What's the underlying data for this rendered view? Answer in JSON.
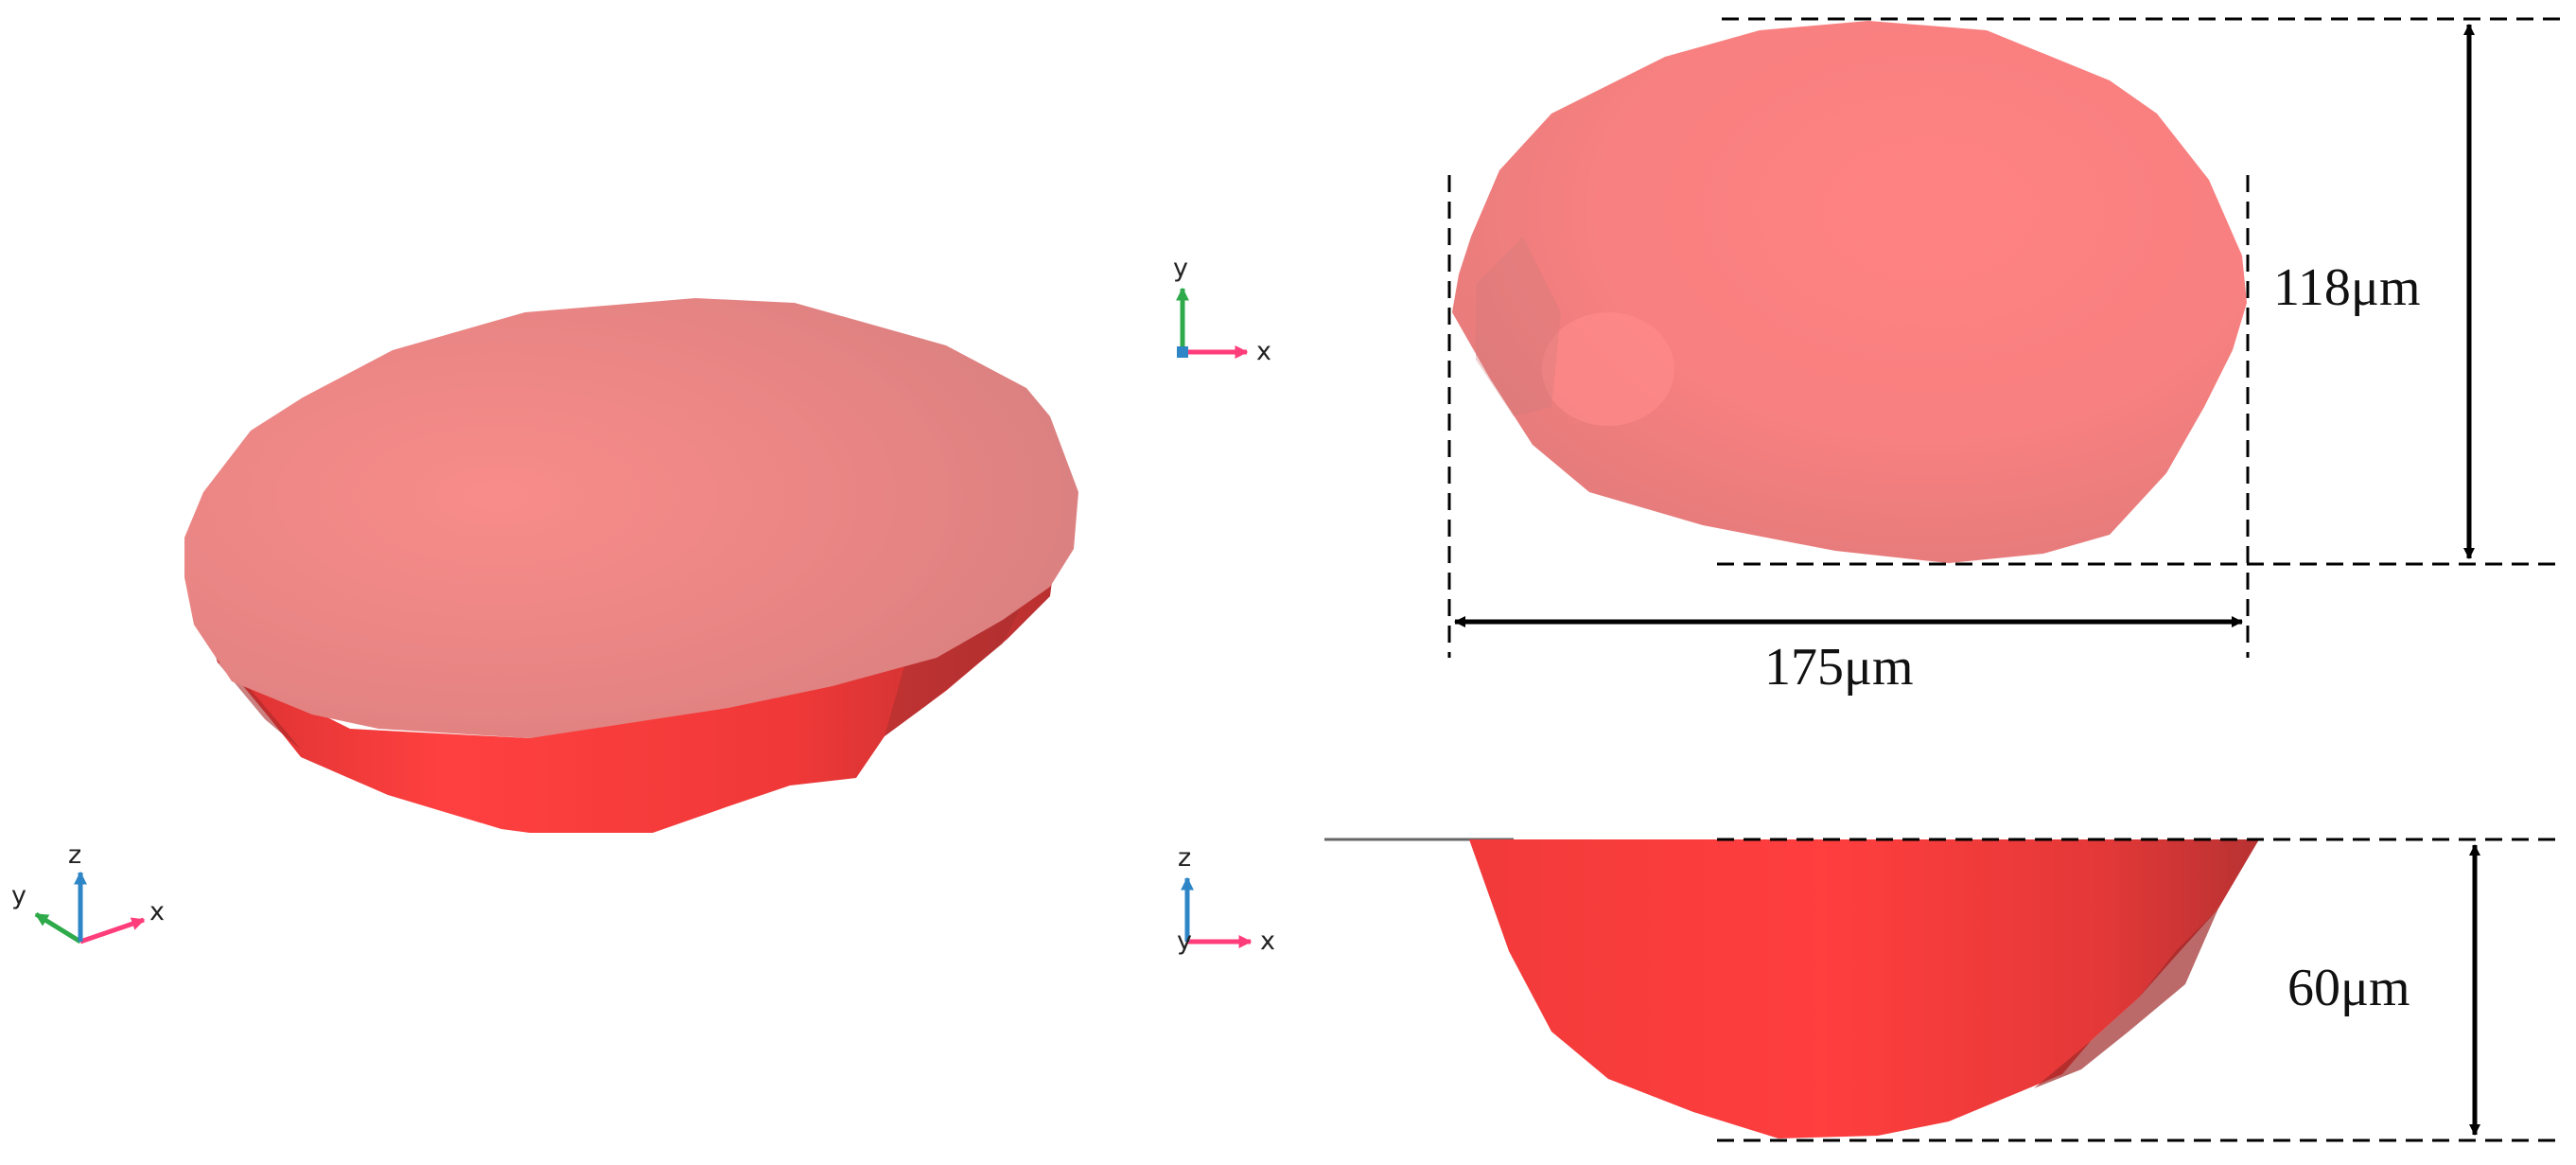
{
  "figure": {
    "views": {
      "isometric": {
        "triad_labels": {
          "x": "x",
          "y": "y",
          "z": "z"
        }
      },
      "top": {
        "triad_labels": {
          "x": "x",
          "y": "y"
        },
        "width_label": "175μm",
        "height_label": "118μm"
      },
      "side": {
        "triad_labels": {
          "x": "x",
          "y": "y",
          "z": "z"
        },
        "depth_label": "60μm"
      }
    },
    "colors": {
      "shape_top_surface": "#f48a88",
      "shape_side_surface": "#ff3b3b",
      "shape_shadow": "#b83434",
      "dimension_lines": "#000000",
      "axis_x": "#ff3d7a",
      "axis_y": "#2eaa4a",
      "axis_z": "#2f86c6"
    }
  }
}
